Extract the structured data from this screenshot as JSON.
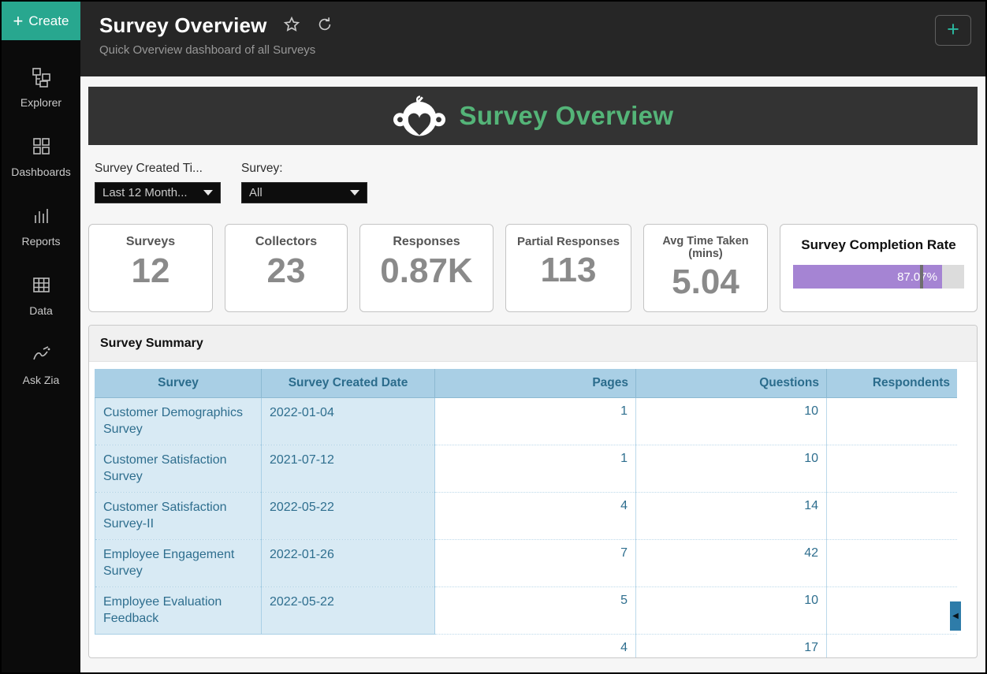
{
  "sidebar": {
    "create_label": "Create",
    "items": [
      {
        "label": "Explorer",
        "icon": "explorer-icon"
      },
      {
        "label": "Dashboards",
        "icon": "dashboards-icon"
      },
      {
        "label": "Reports",
        "icon": "reports-icon"
      },
      {
        "label": "Data",
        "icon": "data-icon"
      },
      {
        "label": "Ask Zia",
        "icon": "ask-zia-icon"
      }
    ]
  },
  "header": {
    "title": "Survey Overview",
    "subtitle": "Quick Overview dashboard of all Surveys"
  },
  "banner": {
    "title": "Survey Overview",
    "logo": "surveymonkey-logo",
    "title_color": "#54b478",
    "background": "#333333"
  },
  "filters": [
    {
      "label": "Survey Created Ti...",
      "value": "Last 12 Month..."
    },
    {
      "label": "Survey:",
      "value": "All"
    }
  ],
  "kpis": [
    {
      "title": "Surveys",
      "value": "12"
    },
    {
      "title": "Collectors",
      "value": "23"
    },
    {
      "title": "Responses",
      "value": "0.87K"
    },
    {
      "title": "Partial Responses",
      "value": "113"
    },
    {
      "title": "Avg Time Taken (mins)",
      "value": "5.04"
    }
  ],
  "completion": {
    "title": "Survey Completion Rate",
    "percent": 87.07,
    "percent_label": "87.07%",
    "marker_percent": 74,
    "fill_color": "#a584d3",
    "track_color": "#dcdcdc",
    "marker_color": "#6e6e6e"
  },
  "chart_data": {
    "type": "table",
    "title": "Survey Summary",
    "categories": [
      "Survey",
      "Survey Created Date",
      "Pages",
      "Questions",
      "Respondents"
    ],
    "kpi_values": {
      "Surveys": 12,
      "Collectors": 23,
      "Responses": "0.87K",
      "Partial Responses": 113,
      "Avg Time Taken (mins)": 5.04,
      "Survey Completion Rate": "87.07%"
    }
  },
  "table": {
    "title": "Survey Summary",
    "columns": [
      "Survey",
      "Survey Created Date",
      "Pages",
      "Questions",
      "Respondents"
    ],
    "rows": [
      {
        "survey": "Customer Demographics Survey",
        "created": "2022-01-04",
        "pages": "1",
        "questions": "10",
        "respondents": ""
      },
      {
        "survey": "Customer Satisfaction Survey",
        "created": "2021-07-12",
        "pages": "1",
        "questions": "10",
        "respondents": ""
      },
      {
        "survey": "Customer Satisfaction Survey-II",
        "created": "2022-05-22",
        "pages": "4",
        "questions": "14",
        "respondents": ""
      },
      {
        "survey": "Employee Engagement Survey",
        "created": "2022-01-26",
        "pages": "7",
        "questions": "42",
        "respondents": ""
      },
      {
        "survey": "Employee Evaluation Feedback",
        "created": "2022-05-22",
        "pages": "5",
        "questions": "10",
        "respondents": ""
      },
      {
        "survey": "",
        "created": "",
        "pages": "4",
        "questions": "17",
        "respondents": "",
        "partial": true
      }
    ]
  },
  "colors": {
    "accent_teal": "#28a78f",
    "topbar_bg": "#262626",
    "sidebar_bg": "#0b0b0b",
    "table_header_bg": "#a9cfe5",
    "table_frozen_bg": "#d8eaf4",
    "table_text": "#2e6e8e",
    "scroll_handle": "#2e7ca9"
  }
}
